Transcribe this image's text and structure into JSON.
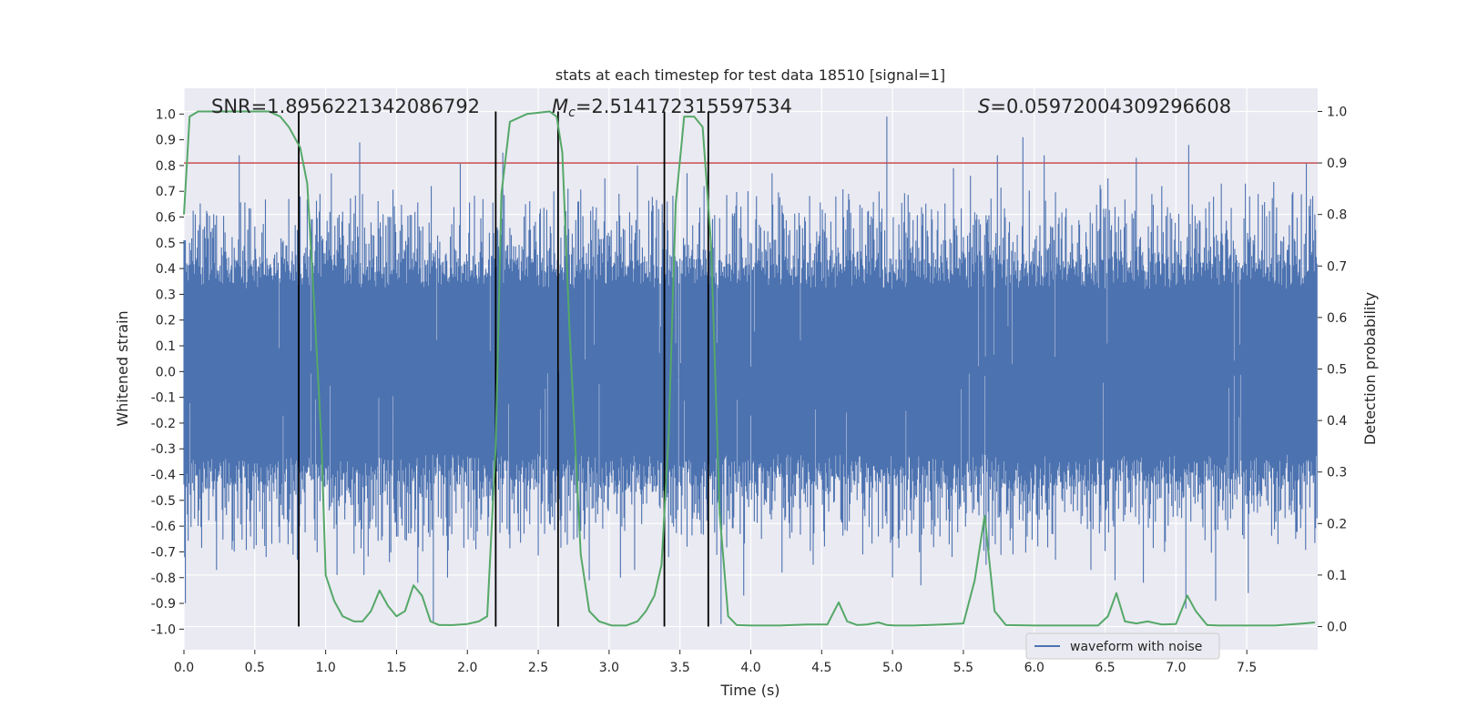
{
  "chart_data": {
    "type": "line",
    "title": "stats at each timestep for test data 18510 [signal=1]",
    "xlabel": "Time (s)",
    "ylabel": "Whitened strain",
    "y2label": "Detection probability",
    "xlim": [
      0,
      8
    ],
    "ylim": [
      -1.08,
      1.1
    ],
    "y2lim": [
      -0.045,
      1.045
    ],
    "x_ticks": [
      "0.0",
      "0.5",
      "1.0",
      "1.5",
      "2.0",
      "2.5",
      "3.0",
      "3.5",
      "4.0",
      "4.5",
      "5.0",
      "5.5",
      "6.0",
      "6.5",
      "7.0",
      "7.5"
    ],
    "y_ticks": [
      "1.0",
      "0.9",
      "0.8",
      "0.7",
      "0.6",
      "0.5",
      "0.4",
      "0.3",
      "0.2",
      "0.1",
      "0.0",
      "-0.1",
      "-0.2",
      "-0.3",
      "-0.4",
      "-0.5",
      "-0.6",
      "-0.7",
      "-0.8",
      "-0.9",
      "-1.0"
    ],
    "y2_ticks": [
      "1.0",
      "0.9",
      "0.8",
      "0.7",
      "0.6",
      "0.5",
      "0.4",
      "0.3",
      "0.2",
      "0.1",
      "0.0"
    ],
    "grid": true,
    "legend": {
      "entries": [
        "waveform with noise"
      ],
      "placement": "lower-right"
    },
    "annotations": {
      "snr": "SNR=1.8956221342086792",
      "mc_symbol": "M",
      "mc_sub": "c",
      "mc_value": "=2.514172315597534",
      "s_symbol": "S",
      "s_value": "=0.05972004309296608"
    },
    "threshold": {
      "axis": "right",
      "value": 0.9,
      "color": "#c44e52"
    },
    "vertical_lines": [
      0.81,
      2.2,
      2.64,
      3.39,
      3.7
    ],
    "series": [
      {
        "name": "waveform with noise",
        "axis": "left",
        "color": "#4c72b0",
        "envelope_nominal": {
          "upper": 0.38,
          "lower": -0.38
        },
        "peaks_pos": [
          [
            0.04,
            0.5
          ],
          [
            0.22,
            0.57
          ],
          [
            0.39,
            0.84
          ],
          [
            0.55,
            0.54
          ],
          [
            0.74,
            0.6
          ],
          [
            0.82,
            0.68
          ],
          [
            1.04,
            0.77
          ],
          [
            1.24,
            0.89
          ],
          [
            1.45,
            0.6
          ],
          [
            1.63,
            0.62
          ],
          [
            1.95,
            0.81
          ],
          [
            2.11,
            0.67
          ],
          [
            2.25,
            0.85
          ],
          [
            2.41,
            0.65
          ],
          [
            2.61,
            0.7
          ],
          [
            2.78,
            0.66
          ],
          [
            2.97,
            0.75
          ],
          [
            3.07,
            0.69
          ],
          [
            3.2,
            0.8
          ],
          [
            3.35,
            0.63
          ],
          [
            3.55,
            0.77
          ],
          [
            3.67,
            0.72
          ],
          [
            3.98,
            0.66
          ],
          [
            4.15,
            0.77
          ],
          [
            4.38,
            0.6
          ],
          [
            4.69,
            0.69
          ],
          [
            4.96,
            0.99
          ],
          [
            5.08,
            0.58
          ],
          [
            5.43,
            0.79
          ],
          [
            5.55,
            0.76
          ],
          [
            5.74,
            0.84
          ],
          [
            5.92,
            0.91
          ],
          [
            6.07,
            0.84
          ],
          [
            6.22,
            0.6
          ],
          [
            6.52,
            0.75
          ],
          [
            6.72,
            0.83
          ],
          [
            6.9,
            0.72
          ],
          [
            7.09,
            0.88
          ],
          [
            7.32,
            0.73
          ],
          [
            7.52,
            0.68
          ],
          [
            7.92,
            0.81
          ]
        ],
        "peaks_neg": [
          [
            0.01,
            -0.9
          ],
          [
            0.23,
            -0.77
          ],
          [
            0.47,
            -0.64
          ],
          [
            0.58,
            -0.72
          ],
          [
            0.8,
            -0.73
          ],
          [
            1.08,
            -0.79
          ],
          [
            1.27,
            -0.79
          ],
          [
            1.45,
            -0.74
          ],
          [
            1.65,
            -0.82
          ],
          [
            1.76,
            -0.97
          ],
          [
            1.86,
            -0.8
          ],
          [
            2.06,
            -0.69
          ],
          [
            2.3,
            -0.6
          ],
          [
            2.52,
            -0.59
          ],
          [
            2.86,
            -0.81
          ],
          [
            3.08,
            -0.8
          ],
          [
            3.18,
            -0.77
          ],
          [
            3.42,
            -0.72
          ],
          [
            3.65,
            -0.63
          ],
          [
            3.79,
            -0.98
          ],
          [
            3.95,
            -0.87
          ],
          [
            4.22,
            -0.78
          ],
          [
            4.44,
            -0.75
          ],
          [
            4.79,
            -0.71
          ],
          [
            5.0,
            -0.8
          ],
          [
            5.2,
            -0.83
          ],
          [
            5.42,
            -0.72
          ],
          [
            5.66,
            -0.75
          ],
          [
            5.85,
            -0.71
          ],
          [
            6.15,
            -0.73
          ],
          [
            6.4,
            -0.77
          ],
          [
            6.57,
            -0.81
          ],
          [
            6.77,
            -0.82
          ],
          [
            6.92,
            -0.7
          ],
          [
            7.07,
            -0.92
          ],
          [
            7.28,
            -0.89
          ],
          [
            7.51,
            -0.86
          ],
          [
            7.72,
            -0.67
          ],
          [
            7.98,
            -0.55
          ]
        ]
      },
      {
        "name": "",
        "axis": "right",
        "color": "#55a868",
        "x": [
          0.0,
          0.04,
          0.1,
          0.2,
          0.4,
          0.6,
          0.68,
          0.74,
          0.82,
          0.87,
          0.92,
          0.97,
          1.0,
          1.06,
          1.12,
          1.2,
          1.26,
          1.32,
          1.38,
          1.44,
          1.5,
          1.56,
          1.62,
          1.68,
          1.74,
          1.8,
          1.9,
          2.0,
          2.08,
          2.14,
          2.2,
          2.24,
          2.3,
          2.42,
          2.58,
          2.63,
          2.67,
          2.72,
          2.8,
          2.86,
          2.93,
          3.02,
          3.12,
          3.2,
          3.26,
          3.32,
          3.37,
          3.42,
          3.47,
          3.53,
          3.6,
          3.66,
          3.72,
          3.78,
          3.84,
          3.9,
          4.0,
          4.2,
          4.4,
          4.54,
          4.62,
          4.68,
          4.75,
          4.82,
          4.9,
          4.96,
          5.02,
          5.15,
          5.35,
          5.5,
          5.58,
          5.65,
          5.72,
          5.8,
          6.0,
          6.2,
          6.45,
          6.52,
          6.58,
          6.64,
          6.72,
          6.8,
          6.9,
          7.0,
          7.08,
          7.14,
          7.22,
          7.3,
          7.5,
          7.7,
          7.9,
          7.98
        ],
        "y": [
          0.8,
          0.99,
          1.0,
          1.0,
          1.0,
          1.0,
          0.99,
          0.97,
          0.93,
          0.86,
          0.62,
          0.36,
          0.1,
          0.05,
          0.02,
          0.01,
          0.01,
          0.03,
          0.07,
          0.04,
          0.02,
          0.03,
          0.08,
          0.06,
          0.01,
          0.003,
          0.003,
          0.005,
          0.01,
          0.02,
          0.35,
          0.84,
          0.98,
          0.995,
          1.0,
          0.99,
          0.92,
          0.58,
          0.14,
          0.03,
          0.01,
          0.002,
          0.002,
          0.01,
          0.03,
          0.06,
          0.12,
          0.37,
          0.82,
          0.99,
          0.99,
          0.97,
          0.74,
          0.22,
          0.02,
          0.003,
          0.002,
          0.002,
          0.004,
          0.004,
          0.047,
          0.01,
          0.003,
          0.004,
          0.008,
          0.003,
          0.002,
          0.002,
          0.004,
          0.006,
          0.09,
          0.215,
          0.03,
          0.003,
          0.002,
          0.002,
          0.002,
          0.02,
          0.065,
          0.01,
          0.006,
          0.01,
          0.004,
          0.005,
          0.06,
          0.03,
          0.003,
          0.002,
          0.002,
          0.002,
          0.006,
          0.008
        ]
      }
    ]
  }
}
